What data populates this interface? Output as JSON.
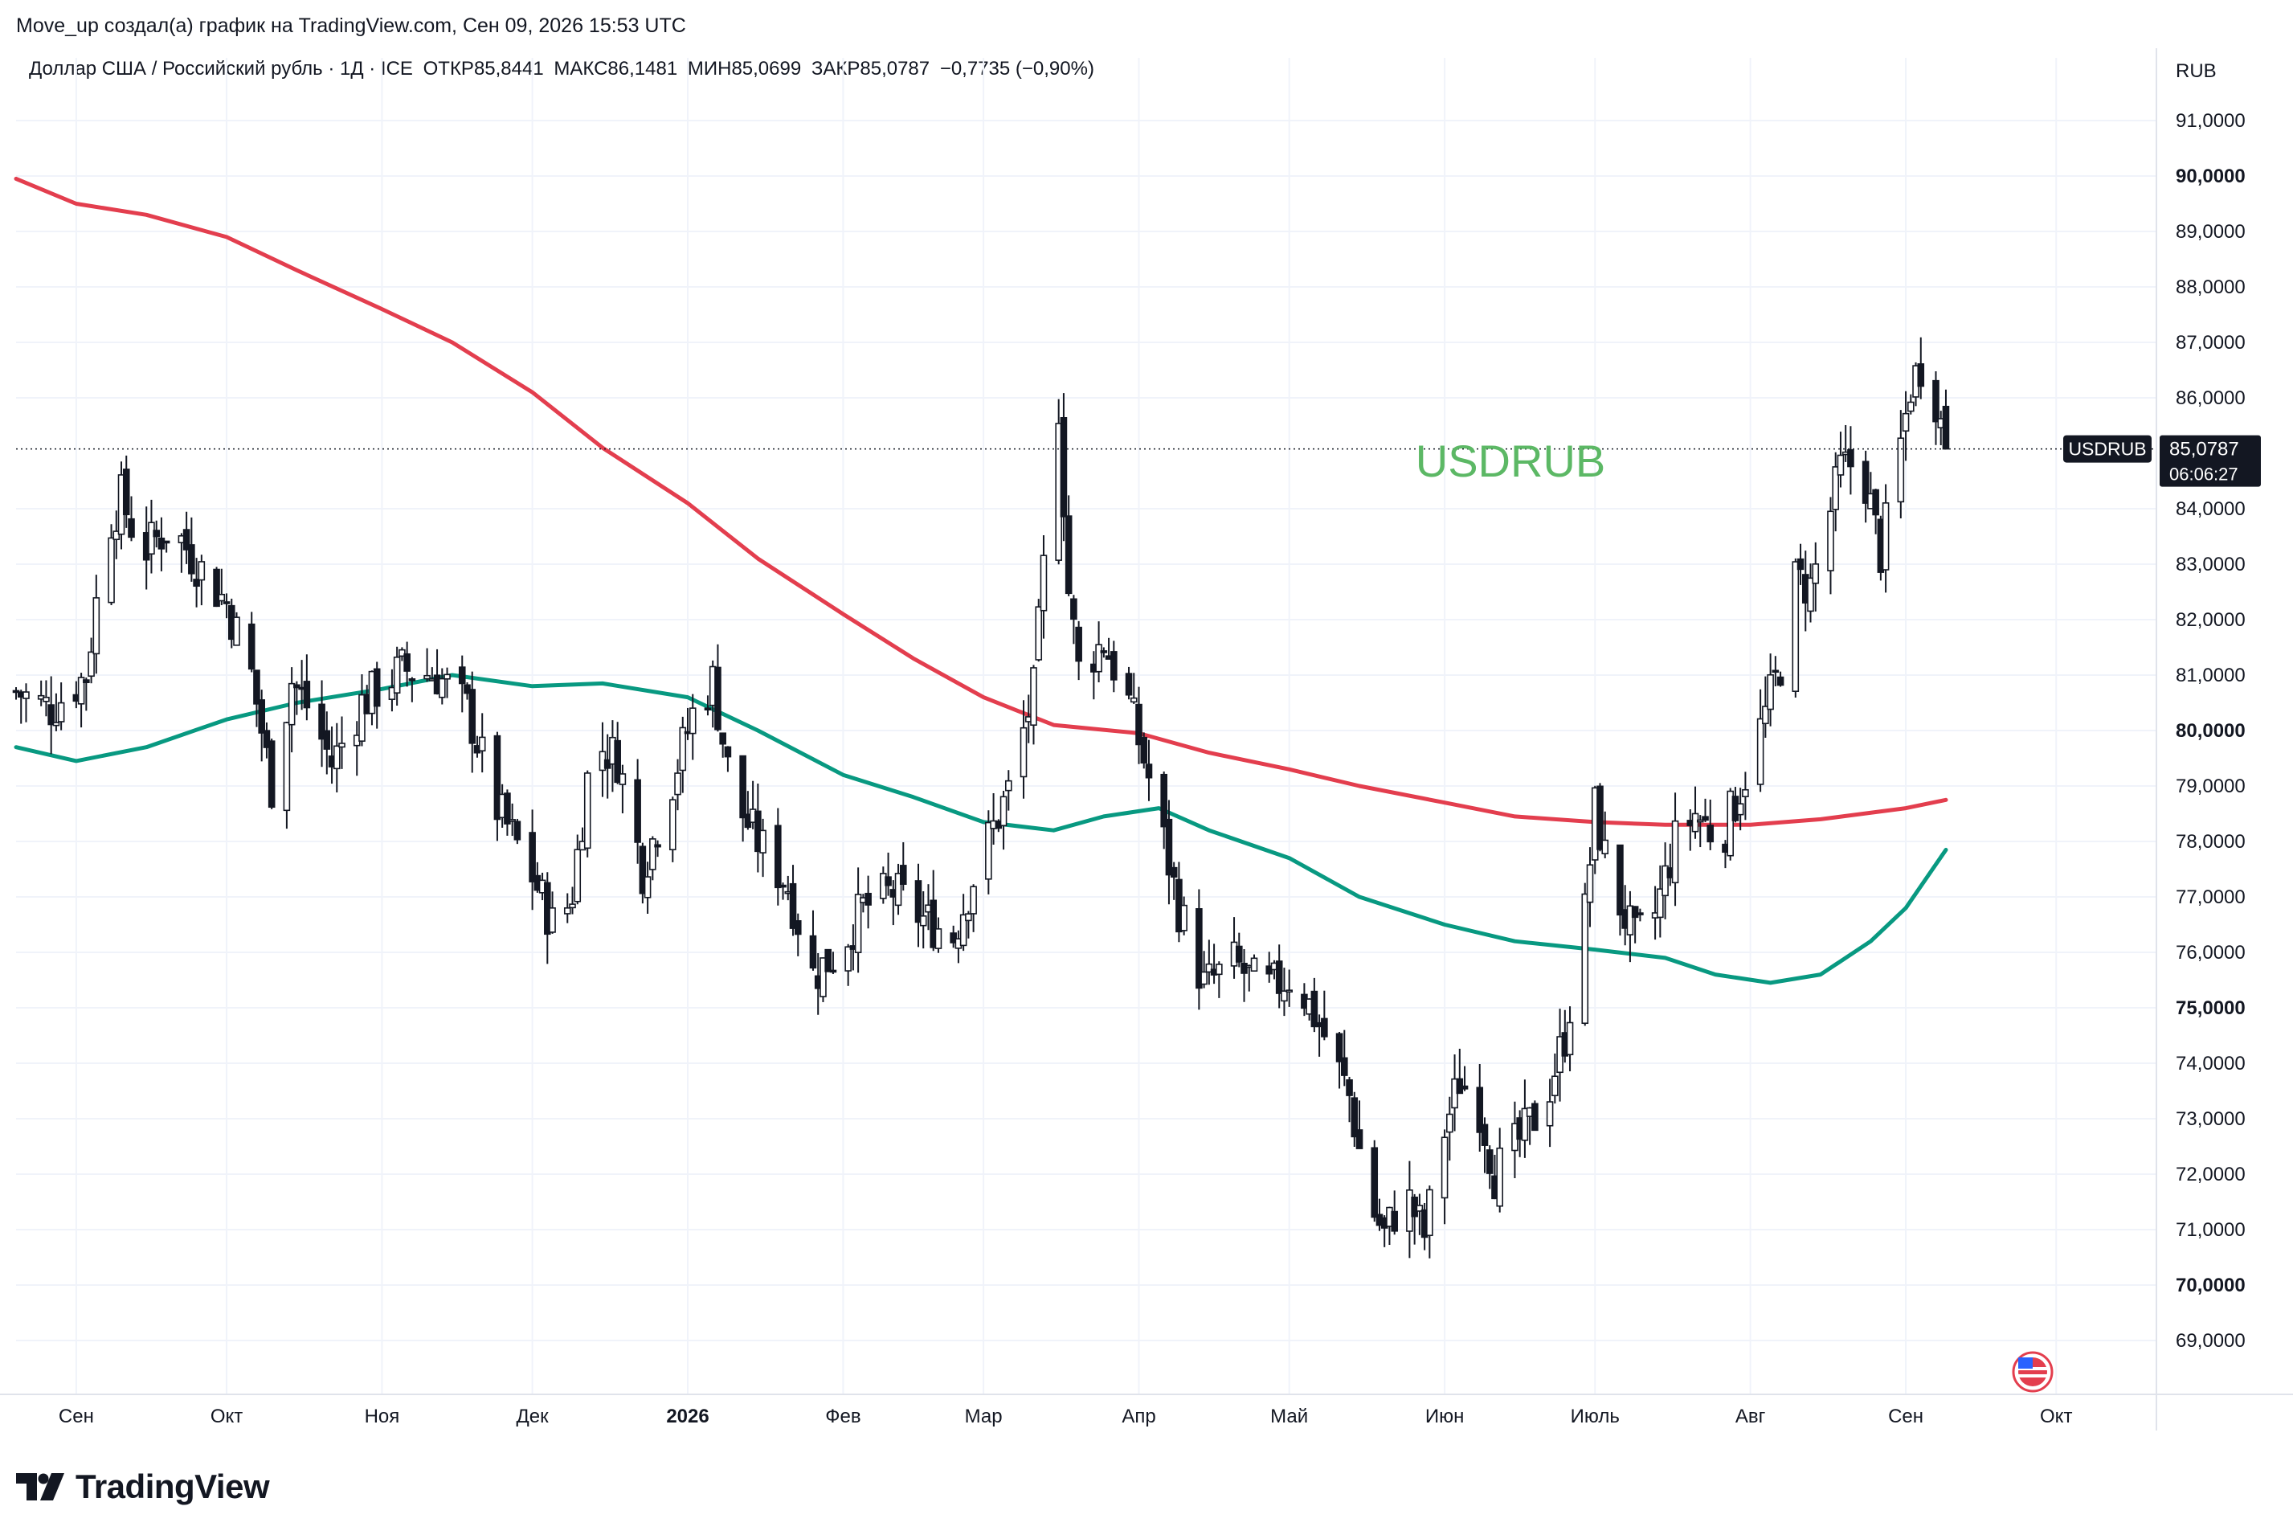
{
  "header": {
    "byline": "Move_up создал(а) график на TradingView.com, Сен 09, 2026 15:53 UTC",
    "symbol": "Доллар США / Российский рубль · 1Д · ICE",
    "open_label": "ОТКР",
    "open_value": "85,8441",
    "high_label": "МАКС",
    "high_value": "86,1481",
    "low_label": "МИН",
    "low_value": "85,0699",
    "close_label": "ЗАКР",
    "close_value": "85,0787",
    "change": "−0,7735 (−0,90%)"
  },
  "watermark": "USDRUB",
  "currency": "RUB",
  "price_tag": {
    "symbol": "USDRUB",
    "price": "85,0787",
    "countdown": "06:06:27"
  },
  "brand": "TradingView",
  "colors": {
    "ma_fast": "#089981",
    "ma_slow": "#e33e4e",
    "candle": "#131722",
    "watermark": "#5cb865",
    "tag_bg": "#131722"
  },
  "chart_data": {
    "type": "candlestick",
    "ylim": [
      68.2,
      92.0
    ],
    "y_ticks": [
      {
        "value": 69,
        "label": "69,0000",
        "major": false
      },
      {
        "value": 70,
        "label": "70,0000",
        "major": true
      },
      {
        "value": 71,
        "label": "71,0000",
        "major": false
      },
      {
        "value": 72,
        "label": "72,0000",
        "major": false
      },
      {
        "value": 73,
        "label": "73,0000",
        "major": false
      },
      {
        "value": 74,
        "label": "74,0000",
        "major": false
      },
      {
        "value": 75,
        "label": "75,0000",
        "major": true
      },
      {
        "value": 76,
        "label": "76,0000",
        "major": false
      },
      {
        "value": 77,
        "label": "77,0000",
        "major": false
      },
      {
        "value": 78,
        "label": "78,0000",
        "major": false
      },
      {
        "value": 79,
        "label": "79,0000",
        "major": false
      },
      {
        "value": 80,
        "label": "80,0000",
        "major": true
      },
      {
        "value": 81,
        "label": "81,0000",
        "major": false
      },
      {
        "value": 82,
        "label": "82,0000",
        "major": false
      },
      {
        "value": 83,
        "label": "83,0000",
        "major": false
      },
      {
        "value": 84,
        "label": "84,0000",
        "major": false
      },
      {
        "value": 86,
        "label": "86,0000",
        "major": false
      },
      {
        "value": 87,
        "label": "87,0000",
        "major": false
      },
      {
        "value": 88,
        "label": "88,0000",
        "major": false
      },
      {
        "value": 89,
        "label": "89,0000",
        "major": false
      },
      {
        "value": 90,
        "label": "90,0000",
        "major": true
      },
      {
        "value": 91,
        "label": "91,0000",
        "major": false
      }
    ],
    "x_ticks": [
      {
        "date": "2025-09-01",
        "label": "Сен",
        "major": false
      },
      {
        "date": "2025-10-01",
        "label": "Окт",
        "major": false
      },
      {
        "date": "2025-11-01",
        "label": "Ноя",
        "major": false
      },
      {
        "date": "2025-12-01",
        "label": "Дек",
        "major": false
      },
      {
        "date": "2026-01-01",
        "label": "2026",
        "major": true
      },
      {
        "date": "2026-02-01",
        "label": "Фев",
        "major": false
      },
      {
        "date": "2026-03-01",
        "label": "Мар",
        "major": false
      },
      {
        "date": "2026-04-01",
        "label": "Апр",
        "major": false
      },
      {
        "date": "2026-05-01",
        "label": "Май",
        "major": false
      },
      {
        "date": "2026-06-01",
        "label": "Июн",
        "major": false
      },
      {
        "date": "2026-07-01",
        "label": "Июль",
        "major": false
      },
      {
        "date": "2026-08-01",
        "label": "Авг",
        "major": false
      },
      {
        "date": "2026-09-01",
        "label": "Сен",
        "major": false
      },
      {
        "date": "2026-10-01",
        "label": "Окт",
        "major": false
      }
    ],
    "date_range": [
      "2025-08-20",
      "2026-10-21"
    ],
    "last_price": 85.0787,
    "price_anchors": [
      {
        "date": "2025-08-20",
        "close": 80.7
      },
      {
        "date": "2025-08-27",
        "close": 80.4
      },
      {
        "date": "2025-09-03",
        "close": 81.0
      },
      {
        "date": "2025-09-07",
        "close": 83.6
      },
      {
        "date": "2025-09-10",
        "close": 84.2
      },
      {
        "date": "2025-09-14",
        "close": 83.2
      },
      {
        "date": "2025-09-20",
        "close": 83.7
      },
      {
        "date": "2025-09-26",
        "close": 82.9
      },
      {
        "date": "2025-10-01",
        "close": 82.3
      },
      {
        "date": "2025-10-06",
        "close": 81.0
      },
      {
        "date": "2025-10-10",
        "close": 79.0
      },
      {
        "date": "2025-10-14",
        "close": 80.9
      },
      {
        "date": "2025-10-18",
        "close": 80.3
      },
      {
        "date": "2025-10-22",
        "close": 79.4
      },
      {
        "date": "2025-10-28",
        "close": 80.5
      },
      {
        "date": "2025-11-05",
        "close": 81.1
      },
      {
        "date": "2025-11-12",
        "close": 81.0
      },
      {
        "date": "2025-11-18",
        "close": 80.4
      },
      {
        "date": "2025-11-24",
        "close": 78.6
      },
      {
        "date": "2025-11-30",
        "close": 77.6
      },
      {
        "date": "2025-12-06",
        "close": 76.3
      },
      {
        "date": "2025-12-09",
        "close": 77.1
      },
      {
        "date": "2025-12-13",
        "close": 79.8
      },
      {
        "date": "2025-12-18",
        "close": 79.5
      },
      {
        "date": "2025-12-23",
        "close": 77.5
      },
      {
        "date": "2025-12-28",
        "close": 78.8
      },
      {
        "date": "2026-01-02",
        "close": 80.3
      },
      {
        "date": "2026-01-06",
        "close": 80.9
      },
      {
        "date": "2026-01-10",
        "close": 78.8
      },
      {
        "date": "2026-01-15",
        "close": 78.0
      },
      {
        "date": "2026-01-21",
        "close": 77.2
      },
      {
        "date": "2026-01-26",
        "close": 75.6
      },
      {
        "date": "2026-01-31",
        "close": 76.0
      },
      {
        "date": "2026-02-05",
        "close": 76.8
      },
      {
        "date": "2026-02-11",
        "close": 77.1
      },
      {
        "date": "2026-02-17",
        "close": 76.6
      },
      {
        "date": "2026-02-23",
        "close": 76.3
      },
      {
        "date": "2026-02-28",
        "close": 77.6
      },
      {
        "date": "2026-03-06",
        "close": 78.9
      },
      {
        "date": "2026-03-11",
        "close": 80.7
      },
      {
        "date": "2026-03-14",
        "close": 84.0
      },
      {
        "date": "2026-03-16",
        "close": 85.9
      },
      {
        "date": "2026-03-18",
        "close": 82.5
      },
      {
        "date": "2026-03-20",
        "close": 81.1
      },
      {
        "date": "2026-03-25",
        "close": 81.6
      },
      {
        "date": "2026-03-30",
        "close": 80.5
      },
      {
        "date": "2026-04-04",
        "close": 78.8
      },
      {
        "date": "2026-04-09",
        "close": 76.8
      },
      {
        "date": "2026-04-14",
        "close": 75.4
      },
      {
        "date": "2026-04-20",
        "close": 75.8
      },
      {
        "date": "2026-04-26",
        "close": 75.3
      },
      {
        "date": "2026-05-02",
        "close": 75.6
      },
      {
        "date": "2026-05-08",
        "close": 74.5
      },
      {
        "date": "2026-05-13",
        "close": 73.4
      },
      {
        "date": "2026-05-17",
        "close": 71.5
      },
      {
        "date": "2026-05-20",
        "close": 70.9
      },
      {
        "date": "2026-05-24",
        "close": 71.7
      },
      {
        "date": "2026-05-28",
        "close": 70.9
      },
      {
        "date": "2026-06-01",
        "close": 72.8
      },
      {
        "date": "2026-06-04",
        "close": 73.7
      },
      {
        "date": "2026-06-08",
        "close": 73.2
      },
      {
        "date": "2026-06-11",
        "close": 72.0
      },
      {
        "date": "2026-06-16",
        "close": 72.6
      },
      {
        "date": "2026-06-21",
        "close": 73.3
      },
      {
        "date": "2026-06-25",
        "close": 74.5
      },
      {
        "date": "2026-06-29",
        "close": 76.7
      },
      {
        "date": "2026-07-01",
        "close": 78.6
      },
      {
        "date": "2026-07-04",
        "close": 77.3
      },
      {
        "date": "2026-07-09",
        "close": 76.2
      },
      {
        "date": "2026-07-13",
        "close": 76.7
      },
      {
        "date": "2026-07-17",
        "close": 78.0
      },
      {
        "date": "2026-07-21",
        "close": 78.5
      },
      {
        "date": "2026-07-26",
        "close": 78.0
      },
      {
        "date": "2026-07-31",
        "close": 79.2
      },
      {
        "date": "2026-08-04",
        "close": 80.3
      },
      {
        "date": "2026-08-07",
        "close": 81.2
      },
      {
        "date": "2026-08-10",
        "close": 82.7
      },
      {
        "date": "2026-08-13",
        "close": 82.6
      },
      {
        "date": "2026-08-16",
        "close": 83.6
      },
      {
        "date": "2026-08-19",
        "close": 84.7
      },
      {
        "date": "2026-08-23",
        "close": 84.9
      },
      {
        "date": "2026-08-27",
        "close": 83.2
      },
      {
        "date": "2026-08-30",
        "close": 84.6
      },
      {
        "date": "2026-09-02",
        "close": 86.2
      },
      {
        "date": "2026-09-05",
        "close": 86.8
      },
      {
        "date": "2026-09-07",
        "close": 86.0
      },
      {
        "date": "2026-09-09",
        "close": 85.0787
      }
    ],
    "series": [
      {
        "name": "",
        "type": "line",
        "color": "#089981",
        "points": [
          {
            "date": "2025-08-20",
            "value": 79.7
          },
          {
            "date": "2025-09-01",
            "value": 79.45
          },
          {
            "date": "2025-09-15",
            "value": 79.7
          },
          {
            "date": "2025-10-01",
            "value": 80.2
          },
          {
            "date": "2025-10-15",
            "value": 80.5
          },
          {
            "date": "2025-11-01",
            "value": 80.75
          },
          {
            "date": "2025-11-15",
            "value": 81.0
          },
          {
            "date": "2025-12-01",
            "value": 80.8
          },
          {
            "date": "2025-12-15",
            "value": 80.85
          },
          {
            "date": "2026-01-01",
            "value": 80.6
          },
          {
            "date": "2026-01-15",
            "value": 80.0
          },
          {
            "date": "2026-02-01",
            "value": 79.2
          },
          {
            "date": "2026-02-15",
            "value": 78.8
          },
          {
            "date": "2026-03-01",
            "value": 78.35
          },
          {
            "date": "2026-03-15",
            "value": 78.2
          },
          {
            "date": "2026-03-25",
            "value": 78.45
          },
          {
            "date": "2026-04-05",
            "value": 78.6
          },
          {
            "date": "2026-04-15",
            "value": 78.2
          },
          {
            "date": "2026-05-01",
            "value": 77.7
          },
          {
            "date": "2026-05-15",
            "value": 77.0
          },
          {
            "date": "2026-06-01",
            "value": 76.5
          },
          {
            "date": "2026-06-15",
            "value": 76.2
          },
          {
            "date": "2026-07-01",
            "value": 76.05
          },
          {
            "date": "2026-07-15",
            "value": 75.9
          },
          {
            "date": "2026-07-25",
            "value": 75.6
          },
          {
            "date": "2026-08-05",
            "value": 75.45
          },
          {
            "date": "2026-08-15",
            "value": 75.6
          },
          {
            "date": "2026-08-25",
            "value": 76.2
          },
          {
            "date": "2026-09-01",
            "value": 76.8
          },
          {
            "date": "2026-09-09",
            "value": 77.85
          }
        ]
      },
      {
        "name": "",
        "type": "line",
        "color": "#e33e4e",
        "points": [
          {
            "date": "2025-08-20",
            "value": 89.95
          },
          {
            "date": "2025-09-01",
            "value": 89.5
          },
          {
            "date": "2025-09-15",
            "value": 89.3
          },
          {
            "date": "2025-10-01",
            "value": 88.9
          },
          {
            "date": "2025-10-15",
            "value": 88.3
          },
          {
            "date": "2025-11-01",
            "value": 87.6
          },
          {
            "date": "2025-11-15",
            "value": 87.0
          },
          {
            "date": "2025-12-01",
            "value": 86.1
          },
          {
            "date": "2025-12-15",
            "value": 85.1
          },
          {
            "date": "2026-01-01",
            "value": 84.1
          },
          {
            "date": "2026-01-15",
            "value": 83.1
          },
          {
            "date": "2026-02-01",
            "value": 82.1
          },
          {
            "date": "2026-02-15",
            "value": 81.3
          },
          {
            "date": "2026-03-01",
            "value": 80.6
          },
          {
            "date": "2026-03-15",
            "value": 80.1
          },
          {
            "date": "2026-04-01",
            "value": 79.95
          },
          {
            "date": "2026-04-15",
            "value": 79.6
          },
          {
            "date": "2026-05-01",
            "value": 79.3
          },
          {
            "date": "2026-05-15",
            "value": 79.0
          },
          {
            "date": "2026-06-01",
            "value": 78.7
          },
          {
            "date": "2026-06-15",
            "value": 78.45
          },
          {
            "date": "2026-07-01",
            "value": 78.35
          },
          {
            "date": "2026-07-15",
            "value": 78.3
          },
          {
            "date": "2026-08-01",
            "value": 78.3
          },
          {
            "date": "2026-08-15",
            "value": 78.4
          },
          {
            "date": "2026-09-01",
            "value": 78.6
          },
          {
            "date": "2026-09-09",
            "value": 78.75
          }
        ]
      }
    ],
    "grid": true
  }
}
